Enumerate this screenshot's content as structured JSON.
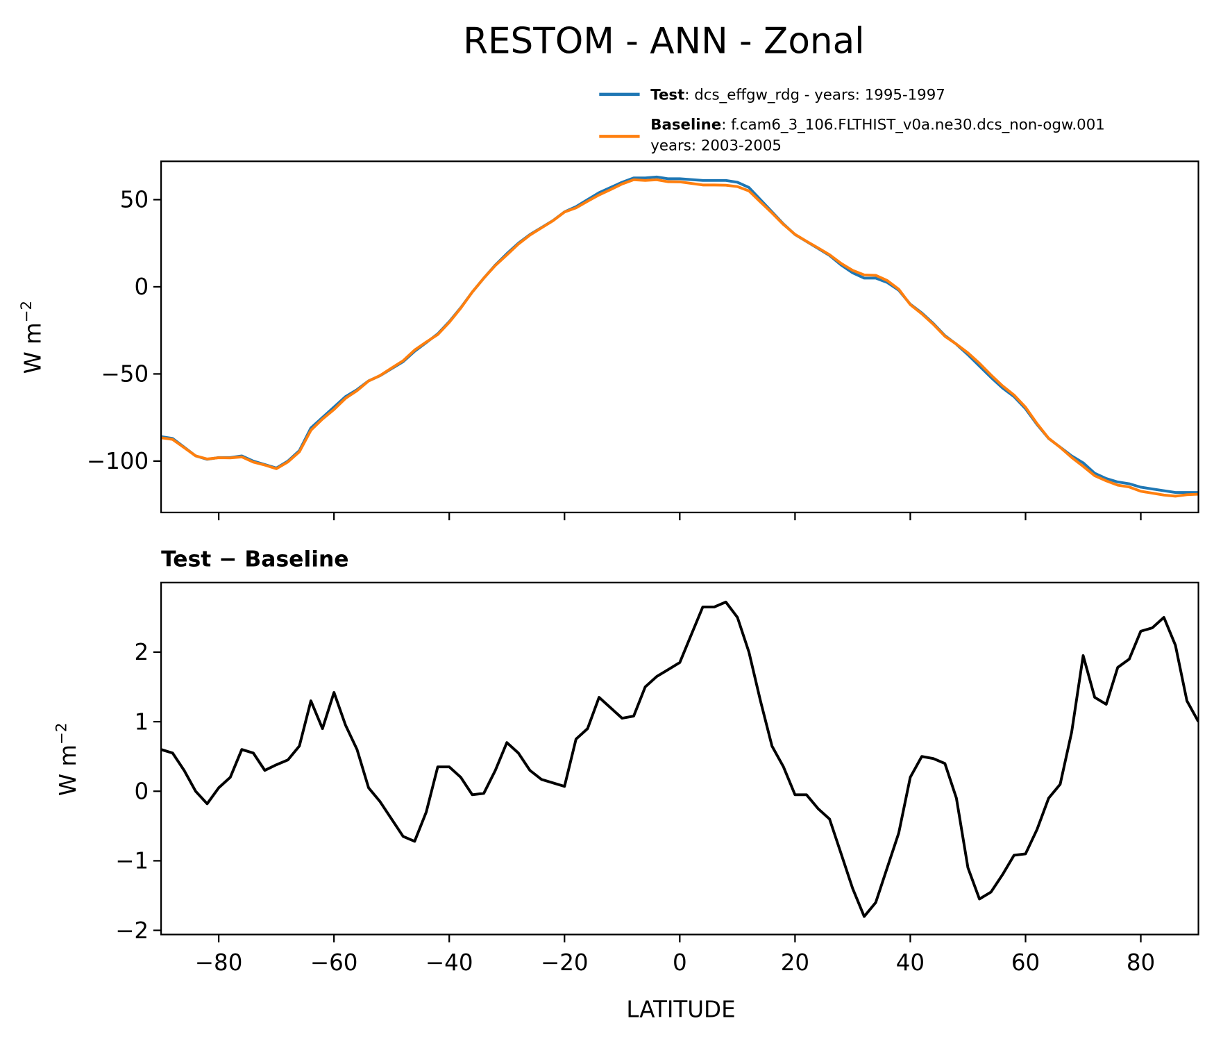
{
  "chart_data": [
    {
      "type": "line",
      "title": "RESTOM - ANN - Zonal",
      "xlabel": "",
      "ylabel": "W m",
      "ylabel_sup": "−2",
      "xlim": [
        -90,
        90
      ],
      "ylim": [
        -129.5,
        72
      ],
      "grid": false,
      "legend_placement": "above-right",
      "xticks": [
        -80,
        -60,
        -40,
        -20,
        0,
        20,
        40,
        60,
        80
      ],
      "yticks": [
        50,
        0,
        -50,
        -100
      ],
      "ytick_labels": [
        "50",
        "0",
        "−50",
        "−100"
      ],
      "x": [
        -90,
        -88,
        -86,
        -84,
        -82,
        -80,
        -78,
        -76,
        -74,
        -72,
        -70,
        -68,
        -66,
        -64,
        -62,
        -60,
        -58,
        -56,
        -54,
        -52,
        -50,
        -48,
        -46,
        -44,
        -42,
        -40,
        -38,
        -36,
        -34,
        -32,
        -30,
        -28,
        -26,
        -24,
        -22,
        -20,
        -18,
        -16,
        -14,
        -12,
        -10,
        -8,
        -6,
        -4,
        -2,
        0,
        2,
        4,
        6,
        8,
        10,
        12,
        14,
        16,
        18,
        20,
        22,
        24,
        26,
        28,
        30,
        32,
        34,
        36,
        38,
        40,
        42,
        44,
        46,
        48,
        50,
        52,
        54,
        56,
        58,
        60,
        62,
        64,
        66,
        68,
        70,
        72,
        74,
        76,
        78,
        80,
        82,
        84,
        86,
        88,
        90
      ],
      "series": [
        {
          "name": "Test",
          "legend_bold": "Test",
          "legend_text": ": dcs_effgw_rdg - years: 1995-1997",
          "color": "#1f77b4",
          "values": [
            -86,
            -87,
            -92,
            -97,
            -99,
            -98,
            -98,
            -97,
            -100,
            -102,
            -104,
            -100,
            -94,
            -81,
            -75,
            -69,
            -63,
            -59,
            -54,
            -51,
            -47,
            -43,
            -37,
            -32,
            -27,
            -20,
            -12,
            -3,
            5,
            12.5,
            19,
            25,
            30,
            34,
            38,
            43,
            46,
            50,
            54,
            57,
            60,
            62.5,
            62.5,
            63,
            62,
            62,
            61.5,
            61,
            61,
            61,
            60,
            57,
            50,
            43,
            36,
            30,
            26,
            22,
            18,
            12.5,
            8,
            5,
            5,
            2.5,
            -2,
            -10,
            -15,
            -21,
            -28,
            -33,
            -39,
            -45.5,
            -52,
            -58,
            -63,
            -70,
            -79,
            -87,
            -92,
            -97,
            -101,
            -107,
            -110,
            -112,
            -113,
            -115,
            -116,
            -117,
            -118,
            -118,
            -118
          ]
        },
        {
          "name": "Baseline",
          "legend_bold": "Baseline",
          "legend_text": ": f.cam6_3_106.FLTHIST_v0a.ne30.dcs_non-ogw.001",
          "legend_text2": "years: 2003-2005",
          "color": "#ff7f0e",
          "values": [
            -86.6,
            -87.6,
            -92.3,
            -97,
            -98.8,
            -98.1,
            -98.2,
            -97.6,
            -100.6,
            -102.3,
            -104.4,
            -100.5,
            -94.7,
            -82.3,
            -75.9,
            -70.4,
            -64,
            -59.6,
            -54.1,
            -50.9,
            -46.6,
            -42.4,
            -36.3,
            -31.7,
            -27.4,
            -20.4,
            -12.2,
            -3,
            5,
            12.2,
            18.3,
            24.5,
            29.7,
            33.8,
            37.9,
            42.9,
            45.3,
            49.1,
            52.7,
            55.8,
            59,
            61.4,
            61,
            61.4,
            60.3,
            60.2,
            59.3,
            58.4,
            58.4,
            58.3,
            57.5,
            55,
            48.7,
            42.4,
            35.7,
            30.1,
            26.1,
            22.3,
            18.4,
            13.4,
            9.4,
            6.8,
            6.6,
            3.6,
            -1.4,
            -10.2,
            -15.5,
            -21.5,
            -28.4,
            -32.9,
            -37.9,
            -43.9,
            -50.6,
            -56.8,
            -62.1,
            -69.1,
            -78.5,
            -86.9,
            -92.1,
            -97.9,
            -103,
            -108.4,
            -111.3,
            -113.8,
            -114.9,
            -117.3,
            -118.4,
            -119.5,
            -120.1,
            -119.3,
            -119
          ]
        }
      ]
    },
    {
      "type": "line",
      "title_bold": "Test − Baseline",
      "xlabel": "LATITUDE",
      "ylabel": "W m",
      "ylabel_sup": "−2",
      "xlim": [
        -90,
        90
      ],
      "ylim": [
        -2.06,
        3.0
      ],
      "grid": false,
      "xticks": [
        -80,
        -60,
        -40,
        -20,
        0,
        20,
        40,
        60,
        80
      ],
      "xtick_labels": [
        "−80",
        "−60",
        "−40",
        "−20",
        "0",
        "20",
        "40",
        "60",
        "80"
      ],
      "yticks": [
        2,
        1,
        0,
        -1,
        -2
      ],
      "ytick_labels": [
        "2",
        "1",
        "0",
        "−1",
        "−2"
      ],
      "series": [
        {
          "name": "Test - Baseline",
          "color": "#000000",
          "values": [
            0.6,
            0.55,
            0.3,
            0,
            -0.18,
            0.05,
            0.2,
            0.6,
            0.55,
            0.3,
            0.38,
            0.45,
            0.65,
            1.3,
            0.9,
            1.42,
            0.95,
            0.6,
            0.05,
            -0.15,
            -0.4,
            -0.65,
            -0.72,
            -0.3,
            0.35,
            0.35,
            0.2,
            -0.05,
            -0.03,
            0.3,
            0.7,
            0.55,
            0.3,
            0.17,
            0.12,
            0.07,
            0.75,
            0.9,
            1.35,
            1.2,
            1.05,
            1.08,
            1.5,
            1.65,
            1.75,
            1.85,
            2.25,
            2.65,
            2.65,
            2.72,
            2.5,
            2.0,
            1.3,
            0.65,
            0.35,
            -0.05,
            -0.05,
            -0.25,
            -0.4,
            -0.9,
            -1.4,
            -1.8,
            -1.6,
            -1.1,
            -0.6,
            0.2,
            0.5,
            0.47,
            0.4,
            -0.1,
            -1.1,
            -1.55,
            -1.45,
            -1.2,
            -0.92,
            -0.9,
            -0.55,
            -0.1,
            0.1,
            0.85,
            1.95,
            1.35,
            1.25,
            1.78,
            1.9,
            2.3,
            2.35,
            2.5,
            2.1,
            1.3,
            1.0
          ]
        }
      ]
    }
  ]
}
